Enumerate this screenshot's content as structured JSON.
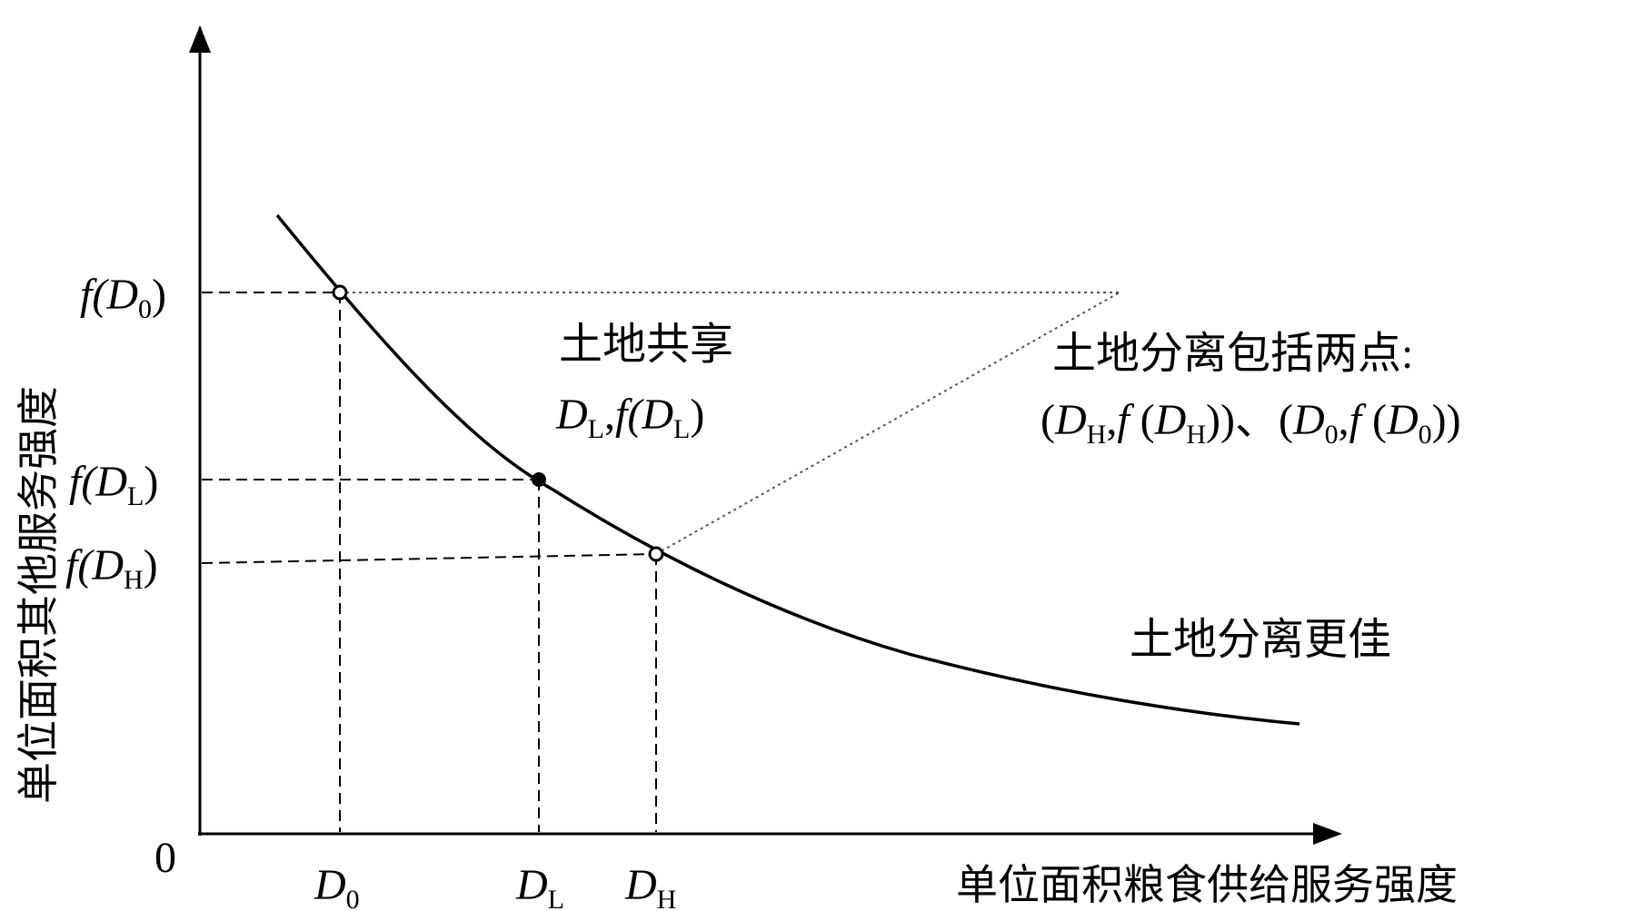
{
  "chart_data": {
    "type": "line",
    "origin_label": "0",
    "xlabel": "单位面积粮食供给服务强度",
    "ylabel": "单位面积其他服务强度",
    "curve": {
      "description_points": [
        [
          1.0,
          9.0
        ],
        [
          2.0,
          6.2
        ],
        [
          3.5,
          4.1
        ],
        [
          5.0,
          3.2
        ],
        [
          8.0,
          2.2
        ],
        [
          11.0,
          1.6
        ]
      ]
    },
    "points": [
      {
        "key": "D0",
        "x_tick": {
          "base": "D",
          "sub": "0"
        },
        "y_tick": {
          "pre": "f(",
          "base": "D",
          "sub": "0",
          "post": ")"
        },
        "marker": "open"
      },
      {
        "key": "DL",
        "x_tick": {
          "base": "D",
          "sub": "L"
        },
        "y_tick": {
          "pre": "f(",
          "base": "D",
          "sub": "L",
          "post": ")"
        },
        "marker": "filled"
      },
      {
        "key": "DH",
        "x_tick": {
          "base": "D",
          "sub": "H"
        },
        "y_tick": {
          "pre": "f(",
          "base": "D",
          "sub": "H",
          "post": ")"
        },
        "marker": "open"
      }
    ],
    "annotations": {
      "sharing_title": "土地共享",
      "sharing_point": {
        "a": "D",
        "a_sub": "L",
        "sep": ",",
        "pre": "f(",
        "b": "D",
        "b_sub": "L",
        "post": ")"
      },
      "separation_title": "土地分离包括两点:",
      "separation_points": {
        "p1_open": "(",
        "p1_a": "D",
        "p1_a_sub": "H",
        "p1_sep": ",",
        "p1_f": "f",
        "p1_open2": " (",
        "p1_b": "D",
        "p1_b_sub": "H",
        "p1_close": "))",
        "joiner": "、",
        "p2_open": "(",
        "p2_a": "D",
        "p2_a_sub": "0",
        "p2_sep": ",",
        "p2_f": "f",
        "p2_open2": " (",
        "p2_b": "D",
        "p2_b_sub": "0",
        "p2_close": "))"
      },
      "separation_better": "土地分离更佳"
    }
  }
}
